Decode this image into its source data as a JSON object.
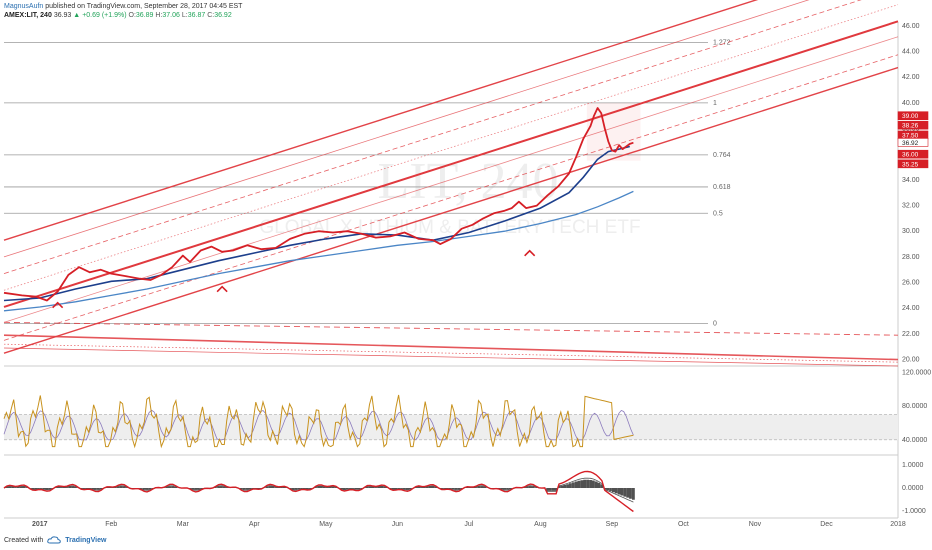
{
  "header": {
    "author": "MagnusAufn",
    "published": "published on TradingView.com, September 28, 2017 04:45 EST",
    "symbol": "AMEX:LIT, 240",
    "last": "36.93",
    "change": "+0.69 (+1.9%)",
    "ohlc": [
      {
        "k": "O:",
        "v": "36.89"
      },
      {
        "k": "H:",
        "v": "37.06"
      },
      {
        "k": "L:",
        "v": "36.87"
      },
      {
        "k": "C:",
        "v": "36.92"
      }
    ]
  },
  "watermark": {
    "symbol": "LIT, 240",
    "name": "GLOBAL X LITHIUM & BATTERY TECH ETF"
  },
  "footer": {
    "created_with": "Created with",
    "brand": "TradingView"
  },
  "colors": {
    "channel": "#e0393e",
    "price": "#d61f26",
    "ma_fast": "#1d3f8c",
    "ma_slow": "#4b86c6",
    "rsi": "#c8921e",
    "macd": "#d61f26",
    "histogram": "#333333",
    "fib_line": "#9a9a9a"
  },
  "chart_data": {
    "type": "line",
    "x_labels": [
      "2017",
      "Feb",
      "Mar",
      "Apr",
      "May",
      "Jun",
      "Jul",
      "Aug",
      "Sep",
      "Oct",
      "Nov",
      "Dec",
      "2018"
    ],
    "price_axis": {
      "ylim": [
        19.5,
        46.3
      ],
      "ticks": [
        "46.00",
        "44.00",
        "42.00",
        "40.00",
        "38.00",
        "36.00",
        "34.00",
        "32.00",
        "30.00",
        "28.00",
        "26.00",
        "24.00",
        "22.00",
        "20.00"
      ]
    },
    "price_labels": [
      {
        "v": 39.0,
        "t": "39.00"
      },
      {
        "v": 38.26,
        "t": "38.26"
      },
      {
        "v": 37.5,
        "t": "37.50"
      },
      {
        "v": 36.92,
        "t": "36.92"
      },
      {
        "v": 36.0,
        "t": "36.00"
      },
      {
        "v": 35.25,
        "t": "35.25"
      }
    ],
    "fib_levels": [
      {
        "label": "1.272",
        "value": 44.7
      },
      {
        "label": "1",
        "value": 40.0
      },
      {
        "label": "0.764",
        "value": 35.95
      },
      {
        "label": "0.618",
        "value": 33.45
      },
      {
        "label": "0.5",
        "value": 31.4
      },
      {
        "label": "0",
        "value": 22.8
      }
    ],
    "price_series": {
      "name": "",
      "x_index": [
        0,
        0.25,
        0.45,
        0.6,
        0.75,
        0.9,
        1.05,
        1.2,
        1.35,
        1.5,
        1.7,
        1.9,
        2.05,
        2.2,
        2.35,
        2.5,
        2.6,
        2.75,
        2.9,
        3.05,
        3.2,
        3.4,
        3.6,
        3.8,
        4.0,
        4.2,
        4.4,
        4.6,
        4.8,
        5.0,
        5.2,
        5.4,
        5.6,
        5.8,
        6.0,
        6.1,
        6.25,
        6.4,
        6.55,
        6.7,
        6.85,
        7.0,
        7.1,
        7.2,
        7.3,
        7.45,
        7.6,
        7.75,
        7.9,
        8.0,
        8.1,
        8.2,
        8.25,
        8.3,
        8.35,
        8.4,
        8.45,
        8.5,
        8.55,
        8.6,
        8.65,
        8.7,
        8.75,
        8.8
      ],
      "values": [
        25.2,
        25.0,
        24.9,
        24.6,
        25.3,
        26.6,
        27.2,
        26.8,
        27.0,
        26.7,
        26.5,
        26.3,
        26.2,
        26.6,
        27.2,
        28.1,
        27.6,
        28.5,
        28.8,
        28.4,
        28.5,
        28.9,
        28.6,
        28.7,
        29.4,
        29.8,
        30.0,
        29.9,
        30.0,
        29.8,
        29.5,
        29.6,
        29.9,
        29.4,
        29.3,
        29.0,
        29.4,
        30.2,
        30.5,
        31.0,
        31.4,
        31.6,
        31.8,
        32.3,
        31.8,
        32.0,
        32.8,
        33.5,
        34.5,
        35.8,
        37.2,
        38.2,
        39.0,
        39.6,
        39.2,
        38.0,
        37.0,
        36.3,
        36.2,
        36.7,
        36.4,
        36.6,
        36.8,
        36.9
      ]
    },
    "ma_fast_series": {
      "name": "",
      "x_index": [
        0,
        0.5,
        1.0,
        1.5,
        2.0,
        2.5,
        3.0,
        3.5,
        4.0,
        4.5,
        5.0,
        5.5,
        6.0,
        6.5,
        7.0,
        7.5,
        7.9,
        8.1,
        8.3,
        8.45,
        8.6,
        8.75
      ],
      "values": [
        24.6,
        24.8,
        25.5,
        26.1,
        26.3,
        27.0,
        27.7,
        28.3,
        28.9,
        29.4,
        29.8,
        29.7,
        29.3,
        29.9,
        30.8,
        31.8,
        33.0,
        34.2,
        35.6,
        36.2,
        36.4,
        36.6
      ]
    },
    "ma_slow_series": {
      "name": "",
      "x_index": [
        0,
        0.5,
        1.0,
        1.5,
        2.0,
        2.5,
        3.0,
        3.5,
        4.0,
        4.5,
        5.0,
        5.5,
        6.0,
        6.5,
        7.0,
        7.5,
        8.0,
        8.3,
        8.6,
        8.8
      ],
      "values": [
        23.8,
        24.1,
        24.5,
        25.0,
        25.5,
        26.1,
        26.7,
        27.2,
        27.7,
        28.1,
        28.5,
        28.9,
        29.2,
        29.6,
        30.0,
        30.6,
        31.3,
        31.9,
        32.6,
        33.1
      ]
    },
    "rsi_pane": {
      "ylim": [
        22,
        124
      ],
      "ticks": [
        "120.0000",
        "80.0000",
        "40.0000"
      ],
      "band": [
        40,
        70
      ]
    },
    "macd_pane": {
      "ylim": [
        -1.3,
        1.3
      ],
      "ticks": [
        "1.0000",
        "0.0000",
        "-1.0000"
      ]
    }
  }
}
